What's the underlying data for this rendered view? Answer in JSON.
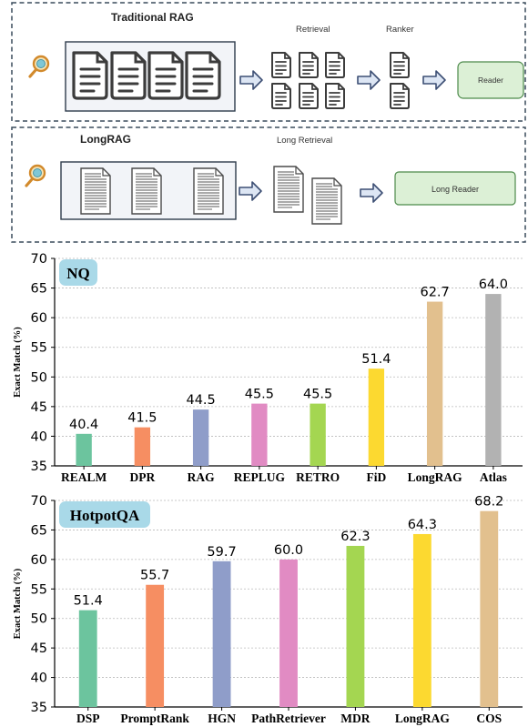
{
  "diagram": {
    "traditional": {
      "title": "Traditional RAG",
      "retrieval_label": "Retrieval",
      "ranker_label": "Ranker",
      "reader_label": "Reader"
    },
    "longrag": {
      "title": "LongRAG",
      "long_retrieval_label": "Long Retrieval",
      "long_reader_label": "Long Reader"
    },
    "colors": {
      "reader_fill": "#dcf0d6",
      "reader_border": "#4c8a4a",
      "arrow_fill": "#dde6f4",
      "arrow_stroke": "#3d4f74",
      "magnifier": "#e7a63a"
    }
  },
  "chart_data": [
    {
      "type": "bar",
      "title": "NQ",
      "ylabel": "Exact Match (%)",
      "xlabel": "",
      "categories": [
        "REALM",
        "DPR",
        "RAG",
        "REPLUG",
        "RETRO",
        "FiD",
        "LongRAG",
        "Atlas"
      ],
      "values": [
        40.4,
        41.5,
        44.5,
        45.5,
        45.5,
        51.4,
        62.7,
        64.0
      ],
      "value_labels": [
        "40.4",
        "41.5",
        "44.5",
        "45.5",
        "45.5",
        "51.4",
        "62.7",
        "64.0"
      ],
      "colors": [
        "#6cc49e",
        "#f68e62",
        "#8f9dc9",
        "#e18bc3",
        "#a4d651",
        "#fcd930",
        "#e2c08e",
        "#b2b2b2"
      ],
      "ylim": [
        35,
        70
      ],
      "yticks": [
        35,
        40,
        45,
        50,
        55,
        60,
        65,
        70
      ],
      "grid": true
    },
    {
      "type": "bar",
      "title": "HotpotQA",
      "ylabel": "Exact Match (%)",
      "xlabel": "",
      "categories": [
        "DSP",
        "PromptRank",
        "HGN",
        "PathRetriever",
        "MDR",
        "LongRAG",
        "COS"
      ],
      "values": [
        51.4,
        55.7,
        59.7,
        60.0,
        62.3,
        64.3,
        68.2
      ],
      "value_labels": [
        "51.4",
        "55.7",
        "59.7",
        "60.0",
        "62.3",
        "64.3",
        "68.2"
      ],
      "colors": [
        "#6cc49e",
        "#f68e62",
        "#8f9dc9",
        "#e18bc3",
        "#a4d651",
        "#fcd930",
        "#e2c08e"
      ],
      "ylim": [
        35,
        70
      ],
      "yticks": [
        35,
        40,
        45,
        50,
        55,
        60,
        65,
        70
      ],
      "grid": true
    }
  ]
}
